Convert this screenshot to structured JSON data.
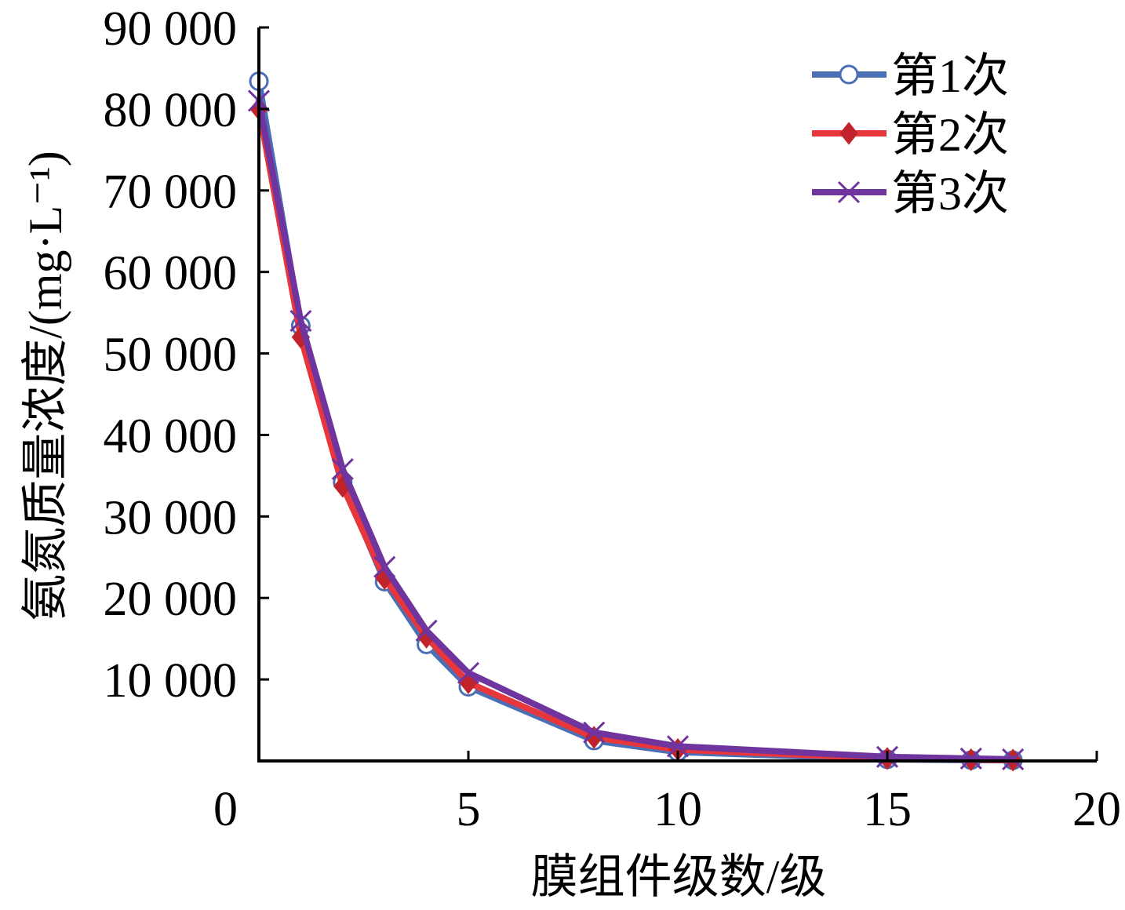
{
  "chart_data": {
    "type": "line",
    "xlabel": "膜组件级数/级",
    "ylabel": "氨氮质量浓度/(mg·L⁻¹)",
    "xlim": [
      0,
      20
    ],
    "ylim": [
      0,
      90000
    ],
    "x_ticks": [
      0,
      5,
      10,
      15,
      20
    ],
    "x_tick_labels": [
      "0",
      "5",
      "10",
      "15",
      "20"
    ],
    "y_ticks": [
      10000,
      20000,
      30000,
      40000,
      50000,
      60000,
      70000,
      80000,
      90000
    ],
    "y_tick_labels": [
      "10 000",
      "20 000",
      "30 000",
      "40 000",
      "50 000",
      "60 000",
      "70 000",
      "80 000",
      "90 000"
    ],
    "grid": false,
    "legend_position": "top-right",
    "series": [
      {
        "name": "第1次",
        "color": "#4a6fb5",
        "marker": "circle",
        "marker_color": "#4a6fb5",
        "x": [
          0,
          1,
          2,
          3,
          4,
          5,
          8,
          10,
          15,
          17,
          18
        ],
        "y": [
          83400,
          53400,
          34200,
          22000,
          14300,
          9100,
          2500,
          1100,
          200,
          100,
          80
        ]
      },
      {
        "name": "第2次",
        "color": "#e8373c",
        "marker": "diamond",
        "marker_color": "#c0232b",
        "x": [
          0,
          1,
          2,
          3,
          4,
          5,
          8,
          10,
          15,
          17,
          18
        ],
        "y": [
          80000,
          52000,
          33700,
          22400,
          15200,
          9600,
          2900,
          1400,
          300,
          150,
          100
        ]
      },
      {
        "name": "第3次",
        "color": "#70349e",
        "marker": "cross",
        "marker_color": "#70349e",
        "x": [
          0,
          1,
          2,
          3,
          4,
          5,
          8,
          10,
          15,
          17,
          18
        ],
        "y": [
          81000,
          54000,
          35800,
          23800,
          16000,
          10800,
          3500,
          1800,
          500,
          300,
          200
        ]
      }
    ]
  }
}
